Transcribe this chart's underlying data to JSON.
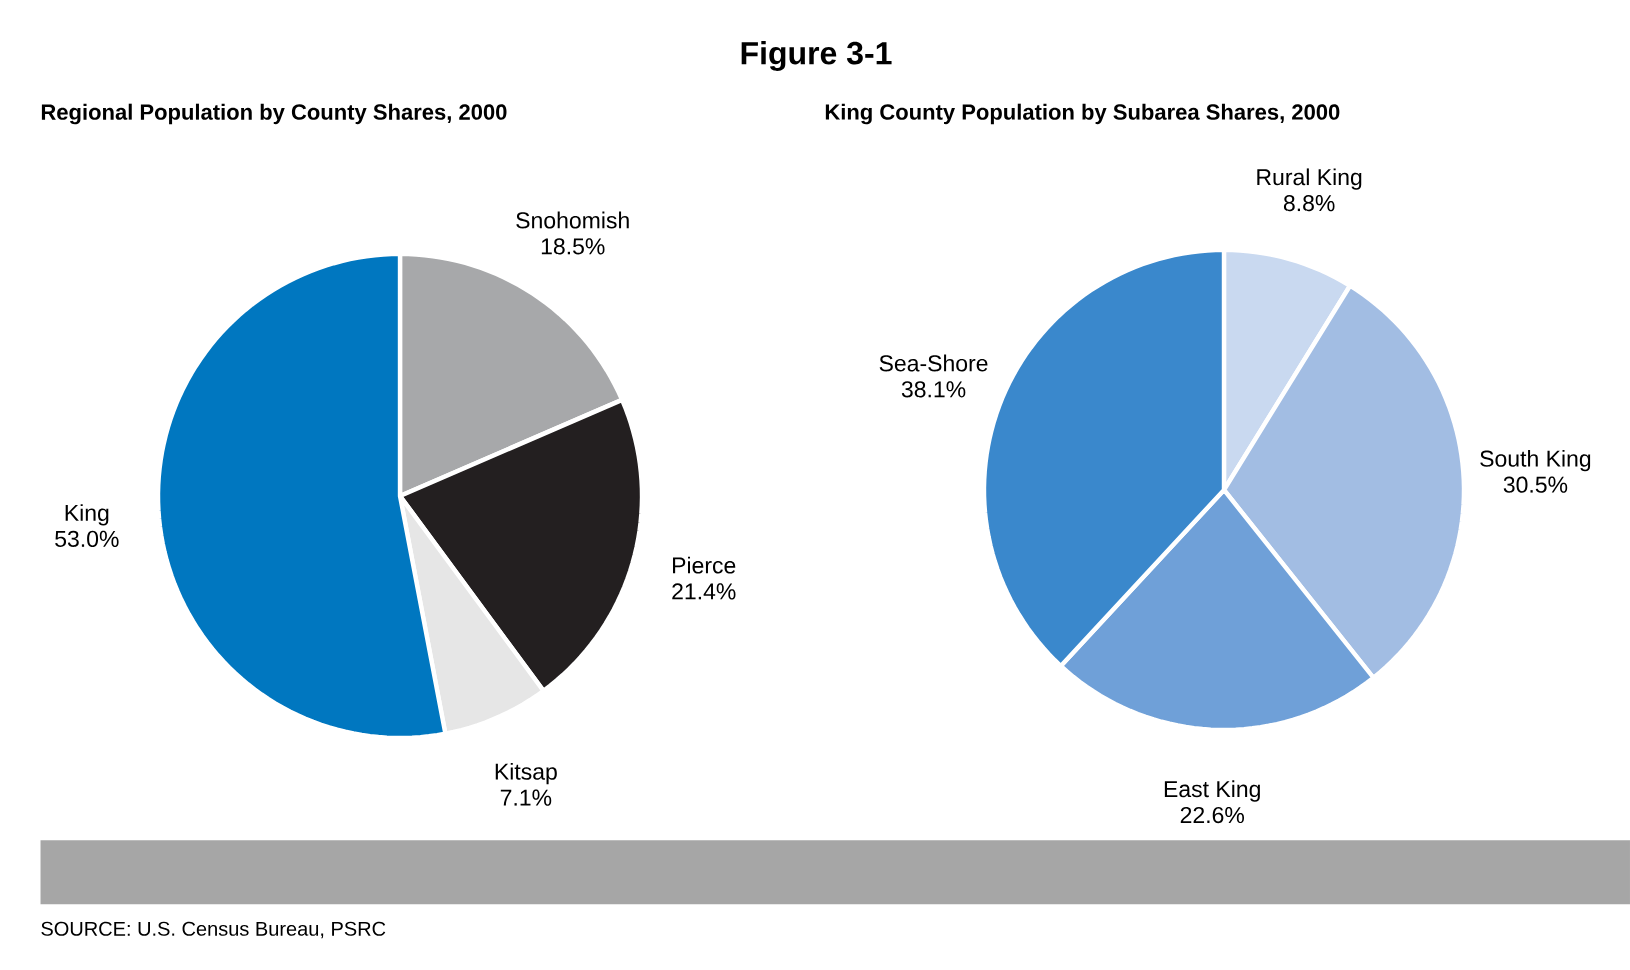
{
  "chart_data": [
    {
      "type": "pie",
      "title": "Regional Population by County Shares, 2000",
      "annotations": [
        "Figure 3-1"
      ],
      "categories": [
        "Snohomish",
        "Pierce",
        "Kitsap",
        "King"
      ],
      "values": [
        18.5,
        21.4,
        7.1,
        53.0
      ],
      "value_labels": [
        "18.5%",
        "21.4%",
        "7.1%",
        "53.0%"
      ],
      "colors": [
        "#a7a8aa",
        "#231f20",
        "#e6e6e6",
        "#0077c0"
      ]
    },
    {
      "type": "pie",
      "title": "King County Population by Subarea Shares, 2000",
      "annotations": [
        "SOURCE:  U.S. Census Bureau, PSRC"
      ],
      "categories": [
        "Rural King",
        "South King",
        "East King",
        "Sea-Shore"
      ],
      "values": [
        8.8,
        30.5,
        22.6,
        38.1
      ],
      "value_labels": [
        "8.8%",
        "30.5%",
        "22.6%",
        "38.1%"
      ],
      "colors": [
        "#c9d9f0",
        "#a2bde3",
        "#6fa0d8",
        "#3a88cc"
      ]
    }
  ]
}
